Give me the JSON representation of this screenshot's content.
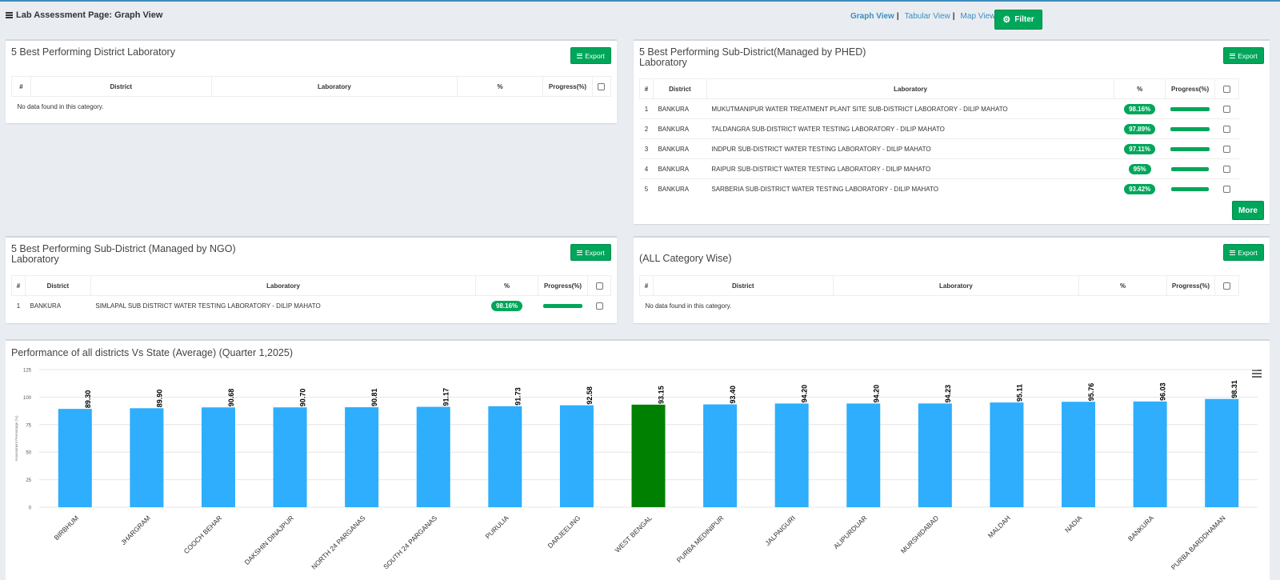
{
  "header": {
    "title": "Lab Assessment Page: Graph View",
    "views": [
      {
        "label": "Graph View",
        "sep": "|",
        "active": true
      },
      {
        "label": "Tabular View",
        "sep": "|",
        "active": false
      },
      {
        "label": "Map View",
        "sep": "",
        "active": false
      }
    ],
    "filter_label": "Filter"
  },
  "export_label": "Export",
  "columns": {
    "num": "#",
    "district": "District",
    "laboratory": "Laboratory",
    "pct": "%",
    "progress": "Progress(%)"
  },
  "no_data": "No data found in this category.",
  "panels": {
    "district": {
      "title": "5 Best Performing District Laboratory"
    },
    "phed": {
      "title_line1": "5 Best Performing Sub-District(Managed by PHED)",
      "title_line2": "Laboratory",
      "rows": [
        {
          "num": "1",
          "district": "BANKURA",
          "lab": "MUKUTMANIPUR WATER TREATMENT PLANT SITE SUB-DISTRICT LABORATORY  - DILIP MAHATO",
          "pct": "98.16%",
          "progress": 98.16
        },
        {
          "num": "2",
          "district": "BANKURA",
          "lab": "TALDANGRA SUB-DISTRICT WATER TESTING LABORATORY  - DILIP MAHATO",
          "pct": "97.89%",
          "progress": 97.89
        },
        {
          "num": "3",
          "district": "BANKURA",
          "lab": "INDPUR SUB-DISTRICT WATER TESTING LABORATORY  - DILIP MAHATO",
          "pct": "97.11%",
          "progress": 97.11
        },
        {
          "num": "4",
          "district": "BANKURA",
          "lab": "RAIPUR SUB-DISTRICT WATER TESTING LABORATORY  - DILIP MAHATO",
          "pct": "95%",
          "progress": 95
        },
        {
          "num": "5",
          "district": "BANKURA",
          "lab": "SARBERIA SUB-DISTRICT WATER TESTING LABORATORY  - DILIP MAHATO",
          "pct": "93.42%",
          "progress": 93.42
        }
      ],
      "more_label": "More"
    },
    "ngo": {
      "title_line1": "5 Best Performing Sub-District (Managed by NGO)",
      "title_line2": "Laboratory",
      "rows": [
        {
          "num": "1",
          "district": "BANKURA",
          "lab": "SIMLAPAL SUB DISTRICT WATER TESTING LABORATORY  - DILIP MAHATO",
          "pct": "98.16%",
          "progress": 98.16
        }
      ]
    },
    "all": {
      "title": "(ALL Category Wise)"
    }
  },
  "chart_data": {
    "type": "bar",
    "title": "Performance of all districts Vs State (Average) (Quarter 1,2025)",
    "ylabel": "Assessment Percentage (%)",
    "ylim": [
      0,
      125
    ],
    "yticks": [
      0,
      25,
      50,
      75,
      100,
      125
    ],
    "grid": true,
    "categories": [
      "BIRBHUM",
      "JHARGRAM",
      "COOCH BEHAR",
      "DAKSHIN DINAJPUR",
      "NORTH 24 PARGANAS",
      "SOUTH 24 PARGANAS",
      "PURULIA",
      "DARJEELING",
      "WEST BENGAL",
      "PURBA MEDINIPUR",
      "JALPAIGURI",
      "ALIPURDUAR",
      "MURSHIDABAD",
      "MALDAH",
      "NADIA",
      "BANKURA",
      "PURBA BARDDHAMAN"
    ],
    "values": [
      89.3,
      89.9,
      90.68,
      90.7,
      90.81,
      91.17,
      91.73,
      92.58,
      93.15,
      93.4,
      94.2,
      94.2,
      94.23,
      95.11,
      95.76,
      96.03,
      98.31
    ],
    "labels": [
      "89.30",
      "89.90",
      "90.68",
      "90.70",
      "90.81",
      "91.17",
      "91.73",
      "92.58",
      "93.15",
      "93.40",
      "94.20",
      "94.20",
      "94.23",
      "95.11",
      "95.76",
      "96.03",
      "98.31"
    ],
    "colors": {
      "default": "#2eaefc",
      "highlight": "#008000"
    },
    "highlight": "WEST BENGAL"
  }
}
